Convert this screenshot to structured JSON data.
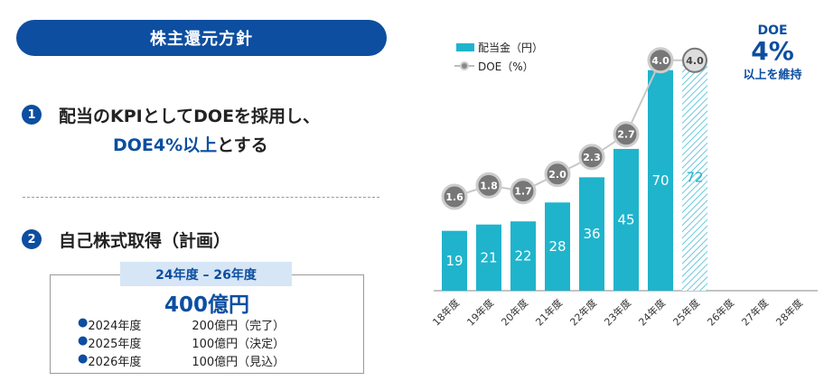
{
  "header": {
    "title": "株主還元方針"
  },
  "policy1": {
    "num": "1",
    "line1": "配当のKPIとしてDOEを採用し、",
    "line2_blue": "DOE4%以上",
    "line2_rest": "とする"
  },
  "policy2": {
    "num": "2",
    "title": "自己株式取得（計画）",
    "period": "24年度 – 26年度",
    "total": "400億円",
    "rows": [
      {
        "year": "2024年度",
        "amount": "200億円（完了）"
      },
      {
        "year": "2025年度",
        "amount": "100億円（決定）"
      },
      {
        "year": "2026年度",
        "amount": "100億円（見込）"
      }
    ]
  },
  "doe_note": {
    "label": "DOE",
    "value": "4%",
    "sub": "以上を維持"
  },
  "colors": {
    "brand": "#0d4ea0",
    "bar": "#1fb4cc",
    "circle": "#777777"
  },
  "chart_data": {
    "type": "bar",
    "categories": [
      "18年度",
      "19年度",
      "20年度",
      "21年度",
      "22年度",
      "23年度",
      "24年度",
      "25年度",
      "26年度",
      "27年度",
      "28年度"
    ],
    "series": [
      {
        "name": "配当金（円）",
        "type": "bar",
        "values": [
          19,
          21,
          22,
          28,
          36,
          45,
          70,
          72,
          null,
          null,
          null
        ],
        "forecast_from": "25年度"
      },
      {
        "name": "DOE（%）",
        "type": "line",
        "values": [
          1.6,
          1.8,
          1.7,
          2.0,
          2.3,
          2.7,
          4.0,
          4.0,
          null,
          null,
          null
        ]
      }
    ],
    "legend": "top-left"
  }
}
